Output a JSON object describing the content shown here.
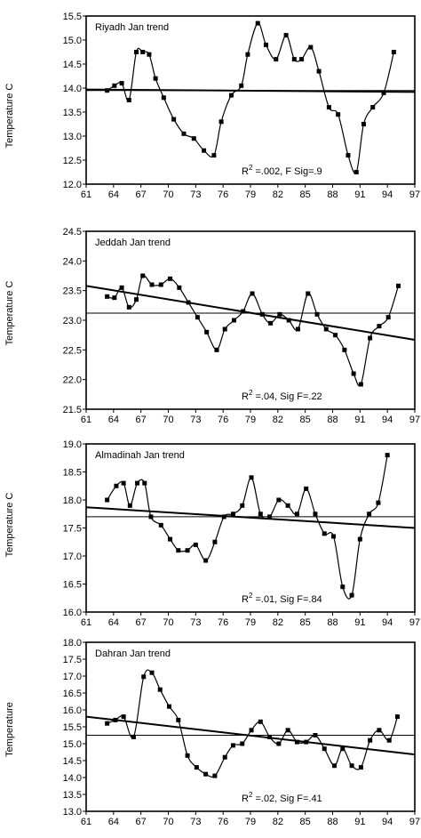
{
  "chart_data": [
    {
      "type": "line",
      "title": "Riyadh Jan trend",
      "ylabel": "Temperature  C",
      "annotation": {
        "r2_prefix": "R",
        "r2_sup": "2",
        "text": " =.002, F Sig=.9"
      },
      "xlim": [
        61,
        97
      ],
      "ylim": [
        12.0,
        15.5
      ],
      "yticks": [
        "12.0",
        "12.5",
        "13.0",
        "13.5",
        "14.0",
        "14.5",
        "15.0",
        "15.5"
      ],
      "xticks": [
        "61",
        "64",
        "67",
        "70",
        "73",
        "76",
        "79",
        "82",
        "85",
        "88",
        "91",
        "94",
        "97"
      ],
      "mean_line": 13.95,
      "trend_line": [
        [
          61,
          13.97
        ],
        [
          97,
          13.92
        ]
      ],
      "x": [
        63.3,
        64.1,
        64.9,
        65.7,
        66.5,
        67.2,
        67.9,
        68.6,
        69.5,
        70.6,
        71.7,
        72.8,
        73.9,
        75.0,
        75.8,
        76.9,
        78.0,
        78.7,
        79.8,
        80.7,
        81.8,
        82.9,
        83.8,
        84.6,
        85.6,
        86.5,
        87.6,
        88.6,
        89.7,
        90.6,
        91.4,
        92.4,
        93.6,
        94.7,
        95.6
      ],
      "y": [
        13.95,
        14.05,
        14.1,
        13.75,
        14.75,
        14.75,
        14.7,
        14.2,
        13.8,
        13.35,
        13.05,
        12.95,
        12.7,
        12.6,
        13.3,
        13.85,
        14.05,
        14.7,
        15.35,
        14.9,
        14.6,
        15.1,
        14.6,
        14.6,
        14.85,
        14.35,
        13.6,
        13.45,
        12.6,
        12.25,
        13.25,
        13.6,
        13.9,
        14.75,
        null
      ]
    },
    {
      "type": "line",
      "title": "Jeddah Jan trend",
      "ylabel": "Temperature  C",
      "annotation": {
        "r2_prefix": "R",
        "r2_sup": "2",
        "text": " =.04, Sig F=.22"
      },
      "xlim": [
        61,
        97
      ],
      "ylim": [
        21.5,
        24.5
      ],
      "yticks": [
        "21.5",
        "22.0",
        "22.5",
        "23.0",
        "23.5",
        "24.0",
        "24.5"
      ],
      "xticks": [
        "61",
        "64",
        "67",
        "70",
        "73",
        "76",
        "79",
        "82",
        "85",
        "88",
        "91",
        "94",
        "97"
      ],
      "mean_line": 23.12,
      "trend_line": [
        [
          61,
          23.58
        ],
        [
          97,
          22.67
        ]
      ],
      "x": [
        63.3,
        64.1,
        64.9,
        65.7,
        66.5,
        67.2,
        68.2,
        69.2,
        70.2,
        71.2,
        72.2,
        73.2,
        74.2,
        75.3,
        76.2,
        77.2,
        78.2,
        79.2,
        80.3,
        81.2,
        82.2,
        83.2,
        84.2,
        85.3,
        86.3,
        87.3,
        88.3,
        89.3,
        90.3,
        91.1,
        92.1,
        93.1,
        94.1,
        95.2
      ],
      "y": [
        23.4,
        23.38,
        23.55,
        23.22,
        23.35,
        23.75,
        23.6,
        23.6,
        23.7,
        23.55,
        23.3,
        23.05,
        22.8,
        22.5,
        22.85,
        23.0,
        23.15,
        23.45,
        23.1,
        22.95,
        23.1,
        23.0,
        22.85,
        23.45,
        23.1,
        22.85,
        22.75,
        22.5,
        22.1,
        21.92,
        22.7,
        22.9,
        23.05,
        23.58
      ]
    },
    {
      "type": "line",
      "title": "Almadinah Jan trend",
      "ylabel": "Temperature  C",
      "annotation": {
        "r2_prefix": "R",
        "r2_sup": "2",
        "text": " =.01, Sig F=.84"
      },
      "xlim": [
        61,
        97
      ],
      "ylim": [
        16.0,
        19.0
      ],
      "yticks": [
        "16.0",
        "16.5",
        "17.0",
        "17.5",
        "18.0",
        "18.5",
        "19.0"
      ],
      "xticks": [
        "61",
        "64",
        "67",
        "70",
        "73",
        "76",
        "79",
        "82",
        "85",
        "88",
        "91",
        "94",
        "97"
      ],
      "mean_line": 17.7,
      "trend_line": [
        [
          61,
          17.87
        ],
        [
          97,
          17.5
        ]
      ],
      "x": [
        63.3,
        64.3,
        65.1,
        65.8,
        66.6,
        67.4,
        68.1,
        69.2,
        70.2,
        71.1,
        72.1,
        73.0,
        74.1,
        75.1,
        76.1,
        77.1,
        78.1,
        79.1,
        80.1,
        81.1,
        82.1,
        83.1,
        84.1,
        85.1,
        86.1,
        87.1,
        88.1,
        89.1,
        90.1,
        91.0,
        92.0,
        93.0,
        94.0,
        95.1
      ],
      "y": [
        18.0,
        18.25,
        18.3,
        17.9,
        18.3,
        18.3,
        17.7,
        17.55,
        17.3,
        17.1,
        17.1,
        17.2,
        16.92,
        17.25,
        17.7,
        17.75,
        17.9,
        18.4,
        17.75,
        17.7,
        18.0,
        17.9,
        17.75,
        18.2,
        17.75,
        17.4,
        17.35,
        16.45,
        16.3,
        17.3,
        17.75,
        17.95,
        18.8,
        null
      ]
    },
    {
      "type": "line",
      "title": "Dahran Jan trend",
      "ylabel": "Temperature",
      "annotation": {
        "r2_prefix": "R",
        "r2_sup": "2",
        "text": " =.02, Sig F=.41"
      },
      "xlim": [
        61,
        97
      ],
      "ylim": [
        13.0,
        18.0
      ],
      "yticks": [
        "13.0",
        "13.5",
        "14.0",
        "14.5",
        "15.0",
        "15.5",
        "16.0",
        "16.5",
        "17.0",
        "17.5",
        "18.0"
      ],
      "xticks": [
        "61",
        "64",
        "67",
        "70",
        "73",
        "76",
        "79",
        "82",
        "85",
        "88",
        "91",
        "94",
        "97"
      ],
      "mean_line": 15.25,
      "trend_line": [
        [
          61,
          15.8
        ],
        [
          97,
          14.68
        ]
      ],
      "x": [
        63.3,
        64.2,
        65.1,
        66.2,
        67.3,
        68.2,
        69.1,
        70.1,
        71.1,
        72.1,
        73.1,
        74.1,
        75.1,
        76.2,
        77.1,
        78.1,
        79.1,
        80.1,
        81.1,
        82.1,
        83.1,
        84.1,
        85.1,
        86.1,
        87.1,
        88.2,
        89.1,
        90.1,
        91.1,
        92.1,
        93.1,
        94.2,
        95.1
      ],
      "y": [
        15.6,
        15.7,
        15.8,
        15.2,
        16.98,
        17.1,
        16.6,
        16.1,
        15.7,
        14.65,
        14.3,
        14.1,
        14.05,
        14.6,
        14.95,
        15.0,
        15.4,
        15.65,
        15.2,
        15.0,
        15.4,
        15.05,
        15.05,
        15.25,
        14.85,
        14.35,
        14.85,
        14.35,
        14.3,
        15.1,
        15.4,
        15.1,
        15.8
      ]
    }
  ]
}
